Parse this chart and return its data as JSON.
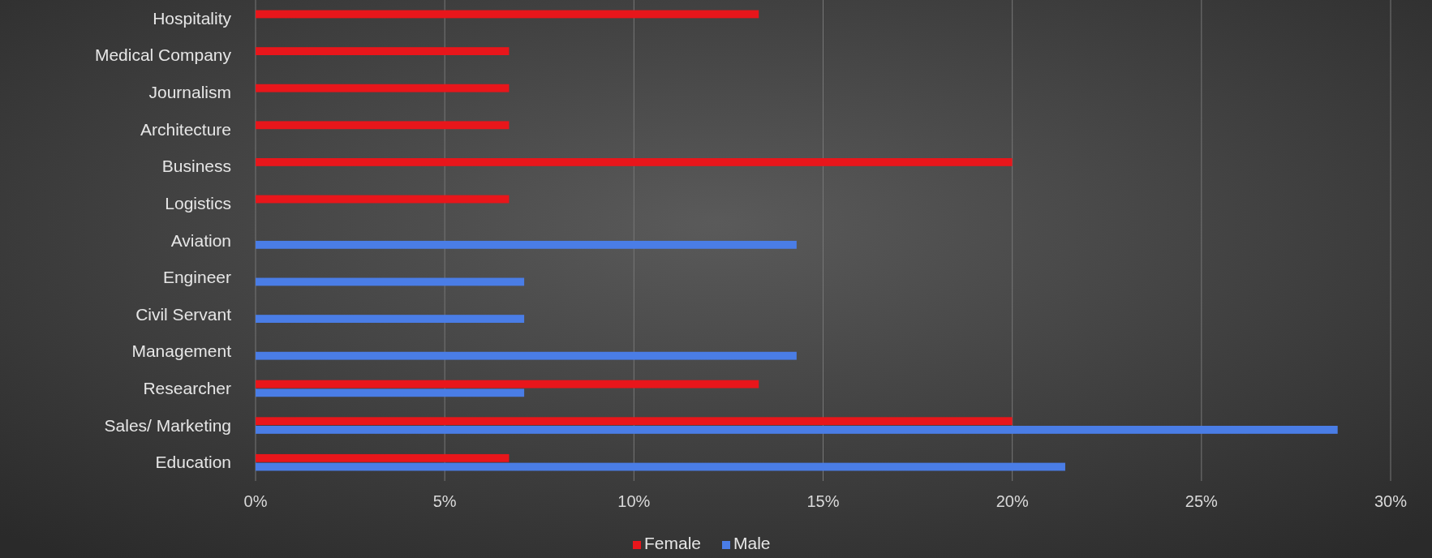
{
  "chart_data": {
    "type": "bar",
    "orientation": "horizontal",
    "categories": [
      "Hospitality",
      "Medical Company",
      "Journalism",
      "Architecture",
      "Business",
      "Logistics",
      "Aviation",
      "Engineer",
      "Civil Servant",
      "Management",
      "Researcher",
      "Sales/ Marketing",
      "Education"
    ],
    "series": [
      {
        "name": "Female",
        "color": "#e8161b",
        "values": [
          13.3,
          6.7,
          6.7,
          6.7,
          20,
          6.7,
          null,
          null,
          null,
          null,
          13.3,
          20,
          6.7
        ]
      },
      {
        "name": "Male",
        "color": "#4a7de6",
        "values": [
          null,
          null,
          null,
          null,
          null,
          null,
          14.3,
          7.1,
          7.1,
          14.3,
          7.1,
          28.6,
          21.4
        ]
      }
    ],
    "xlim": [
      0,
      30
    ],
    "xticks": [
      {
        "value": 0,
        "label": "0%"
      },
      {
        "value": 5,
        "label": "5%"
      },
      {
        "value": 10,
        "label": "10%"
      },
      {
        "value": 15,
        "label": "15%"
      },
      {
        "value": 20,
        "label": "20%"
      },
      {
        "value": 25,
        "label": "25%"
      },
      {
        "value": 30,
        "label": "30%"
      }
    ],
    "grid": "x",
    "legend": "bottom"
  }
}
